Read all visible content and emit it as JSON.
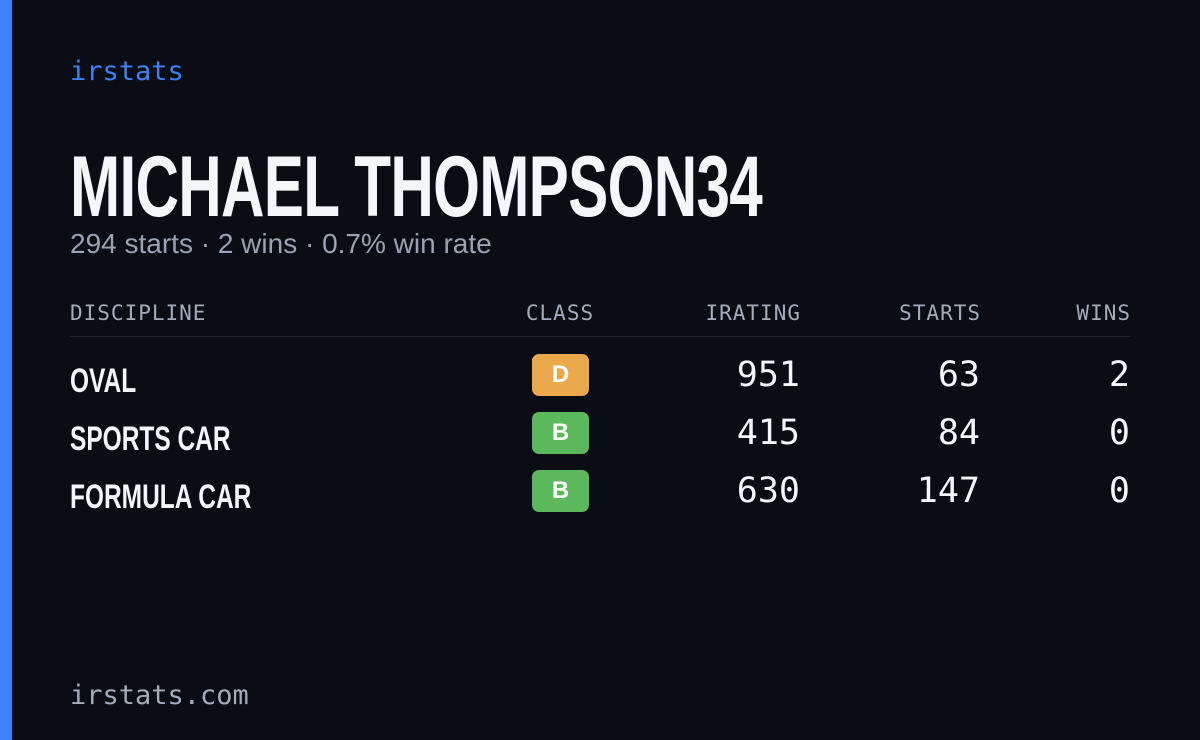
{
  "brand": "irstats",
  "driver": {
    "name": "MICHAEL THOMPSON34",
    "summary": "294 starts · 2 wins · 0.7% win rate"
  },
  "table": {
    "headers": [
      "DISCIPLINE",
      "CLASS",
      "IRATING",
      "STARTS",
      "WINS"
    ],
    "rows": [
      {
        "discipline": "OVAL",
        "class": "D",
        "class_color": "#e9a84b",
        "irating": 951,
        "starts": 63,
        "wins": 2
      },
      {
        "discipline": "SPORTS CAR",
        "class": "B",
        "class_color": "#5cb85c",
        "irating": 415,
        "starts": 84,
        "wins": 0
      },
      {
        "discipline": "FORMULA CAR",
        "class": "B",
        "class_color": "#5cb85c",
        "irating": 630,
        "starts": 147,
        "wins": 0
      }
    ]
  },
  "footer": "irstats.com"
}
